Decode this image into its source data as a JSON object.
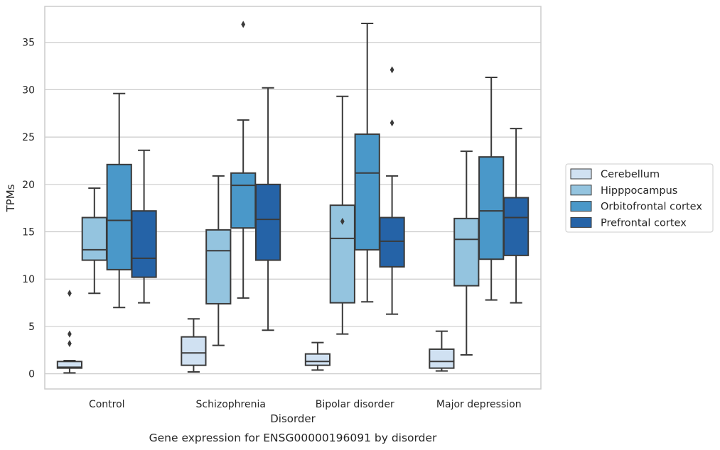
{
  "chart_data": {
    "type": "box",
    "caption": "Gene expression for ENSG00000196091 by disorder",
    "xlabel": "Disorder",
    "ylabel": "TPMs",
    "ylim": [
      -1.6,
      38.8
    ],
    "yticks": [
      0,
      5,
      10,
      15,
      20,
      25,
      30,
      35
    ],
    "grid": "horizontal",
    "legend_position": "right",
    "categories": [
      "Control",
      "Schizophrenia",
      "Bipolar disorder",
      "Major depression"
    ],
    "series": [
      {
        "name": "Cerebellum",
        "color": "#d0e1f2",
        "boxes": [
          {
            "whisker_low": 0.1,
            "q1": 0.6,
            "median": 0.7,
            "q3": 1.3,
            "whisker_high": 1.4,
            "outliers": [
              3.2,
              4.2,
              8.5
            ]
          },
          {
            "whisker_low": 0.2,
            "q1": 0.9,
            "median": 2.2,
            "q3": 3.9,
            "whisker_high": 5.8,
            "outliers": []
          },
          {
            "whisker_low": 0.4,
            "q1": 0.9,
            "median": 1.3,
            "q3": 2.1,
            "whisker_high": 3.3,
            "outliers": []
          },
          {
            "whisker_low": 0.3,
            "q1": 0.6,
            "median": 1.3,
            "q3": 2.6,
            "whisker_high": 4.5,
            "outliers": []
          }
        ]
      },
      {
        "name": "Hipppocampus",
        "color": "#94c4df",
        "boxes": [
          {
            "whisker_low": 8.5,
            "q1": 12.0,
            "median": 13.1,
            "q3": 16.5,
            "whisker_high": 19.6,
            "outliers": []
          },
          {
            "whisker_low": 3.0,
            "q1": 7.4,
            "median": 13.0,
            "q3": 15.2,
            "whisker_high": 20.9,
            "outliers": []
          },
          {
            "whisker_low": 4.2,
            "q1": 7.5,
            "median": 14.3,
            "q3": 17.8,
            "whisker_high": 29.3,
            "outliers": [
              16.1
            ]
          },
          {
            "whisker_low": 2.0,
            "q1": 9.3,
            "median": 14.2,
            "q3": 16.4,
            "whisker_high": 23.5,
            "outliers": []
          }
        ]
      },
      {
        "name": "Orbitofrontal cortex",
        "color": "#4a98c9",
        "boxes": [
          {
            "whisker_low": 7.0,
            "q1": 11.0,
            "median": 16.2,
            "q3": 22.1,
            "whisker_high": 29.6,
            "outliers": []
          },
          {
            "whisker_low": 8.0,
            "q1": 15.4,
            "median": 19.9,
            "q3": 21.2,
            "whisker_high": 26.8,
            "outliers": [
              36.9
            ]
          },
          {
            "whisker_low": 7.6,
            "q1": 13.1,
            "median": 21.2,
            "q3": 25.3,
            "whisker_high": 37.0,
            "outliers": []
          },
          {
            "whisker_low": 7.8,
            "q1": 12.1,
            "median": 17.2,
            "q3": 22.9,
            "whisker_high": 31.3,
            "outliers": []
          }
        ]
      },
      {
        "name": "Prefrontal cortex",
        "color": "#2563a7",
        "boxes": [
          {
            "whisker_low": 7.5,
            "q1": 10.2,
            "median": 12.2,
            "q3": 17.2,
            "whisker_high": 23.6,
            "outliers": []
          },
          {
            "whisker_low": 4.6,
            "q1": 12.0,
            "median": 16.3,
            "q3": 20.0,
            "whisker_high": 30.2,
            "outliers": []
          },
          {
            "whisker_low": 6.3,
            "q1": 11.3,
            "median": 14.0,
            "q3": 16.5,
            "whisker_high": 20.9,
            "outliers": [
              26.5,
              32.1
            ]
          },
          {
            "whisker_low": 7.5,
            "q1": 12.5,
            "median": 16.5,
            "q3": 18.6,
            "whisker_high": 25.9,
            "outliers": []
          }
        ]
      }
    ]
  }
}
